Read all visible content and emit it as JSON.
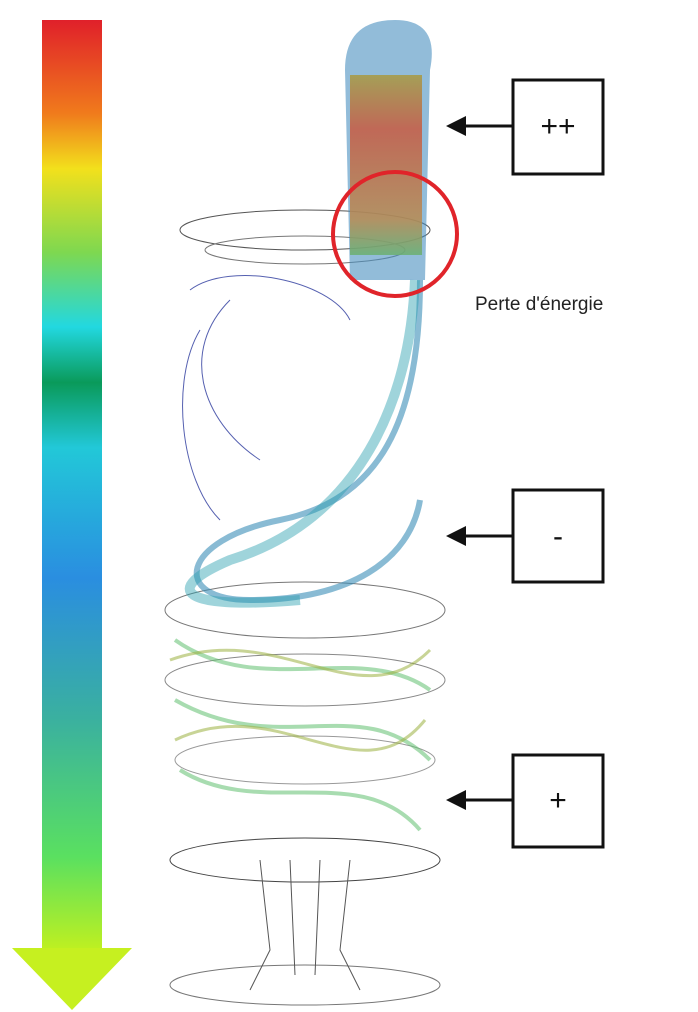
{
  "labels": {
    "top": "++",
    "middle": "-",
    "bottom": "+"
  },
  "annotation": "Perte d'énergie"
}
